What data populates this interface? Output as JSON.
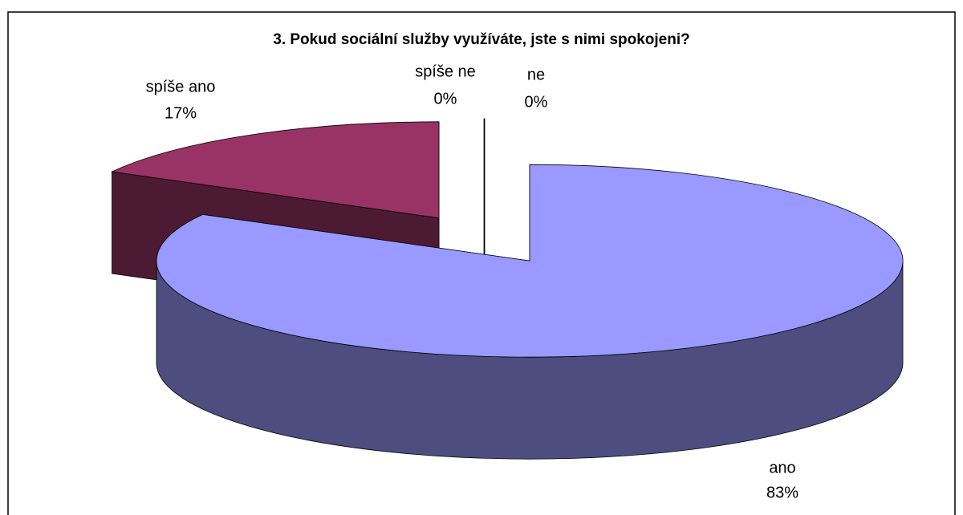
{
  "chart_data": {
    "type": "pie",
    "title": "3. Pokud sociální služby využíváte, jste s nimi spokojeni?",
    "categories": [
      "ano",
      "spíše ano",
      "spíše ne",
      "ne"
    ],
    "values": [
      83,
      17,
      0,
      0
    ],
    "value_labels": [
      "83%",
      "17%",
      "0%",
      "0%"
    ],
    "colors": [
      "#9999ff",
      "#993366",
      "#ffffcc",
      "#ccffff"
    ]
  }
}
